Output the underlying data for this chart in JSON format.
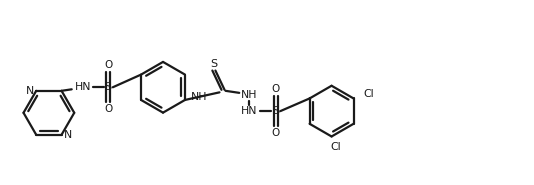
{
  "bg_color": "#ffffff",
  "line_color": "#1a1a1a",
  "line_width": 1.6,
  "figsize": [
    5.34,
    1.85
  ],
  "dpi": 100,
  "xlim": [
    0,
    10.5
  ],
  "ylim": [
    0,
    3.5
  ]
}
